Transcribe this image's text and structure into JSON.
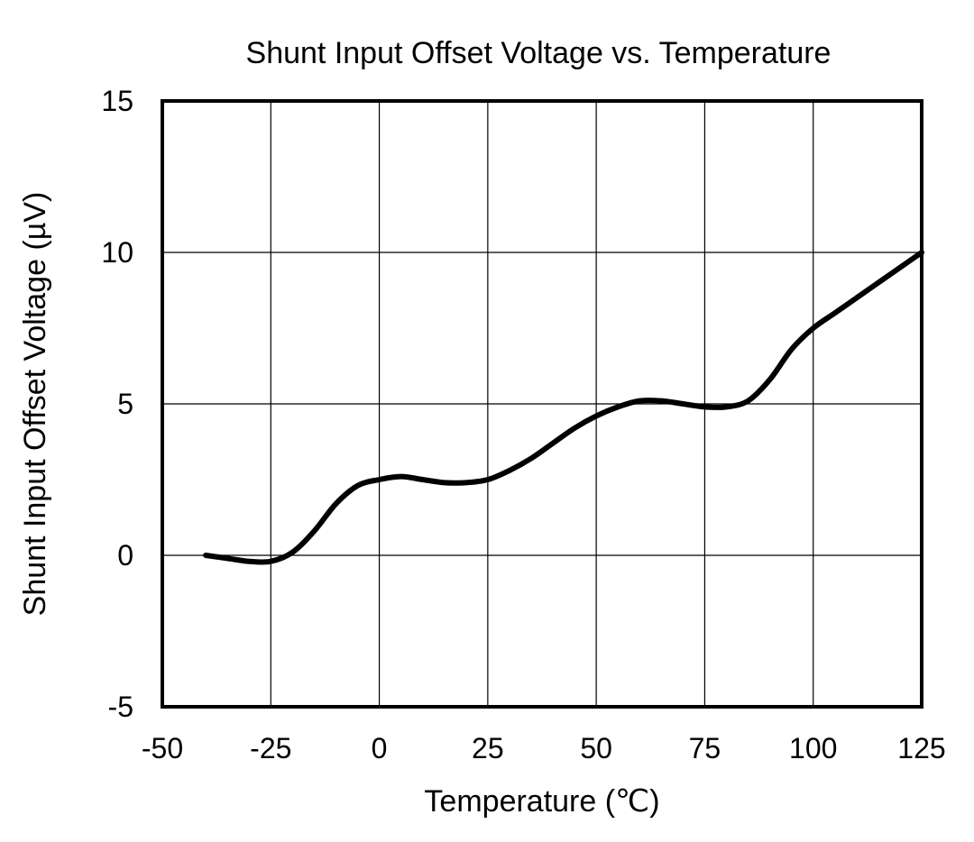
{
  "chart_data": {
    "type": "line",
    "title": "Shunt Input Offset Voltage vs. Temperature",
    "xlabel": "Temperature (℃)",
    "ylabel": "Shunt Input Offset Voltage (µV)",
    "xlim": [
      -50,
      125
    ],
    "ylim": [
      -5,
      15
    ],
    "xticks": [
      -50,
      -25,
      0,
      25,
      50,
      75,
      100,
      125
    ],
    "yticks": [
      -5,
      0,
      5,
      10,
      15
    ],
    "grid": true,
    "legend": "none",
    "series": [
      {
        "color": "#000000",
        "x": [
          -40,
          -35,
          -30,
          -25,
          -20,
          -15,
          -10,
          -5,
          0,
          5,
          10,
          15,
          20,
          25,
          30,
          35,
          40,
          45,
          50,
          55,
          60,
          65,
          70,
          75,
          80,
          85,
          90,
          95,
          100,
          105,
          110,
          115,
          120,
          125
        ],
        "y": [
          0,
          -0.1,
          -0.2,
          -0.2,
          0.1,
          0.8,
          1.7,
          2.3,
          2.5,
          2.6,
          2.5,
          2.4,
          2.4,
          2.5,
          2.8,
          3.2,
          3.7,
          4.2,
          4.6,
          4.9,
          5.1,
          5.1,
          5.0,
          4.9,
          4.9,
          5.1,
          5.8,
          6.8,
          7.5,
          8.0,
          8.5,
          9.0,
          9.5,
          10.0
        ]
      }
    ]
  }
}
